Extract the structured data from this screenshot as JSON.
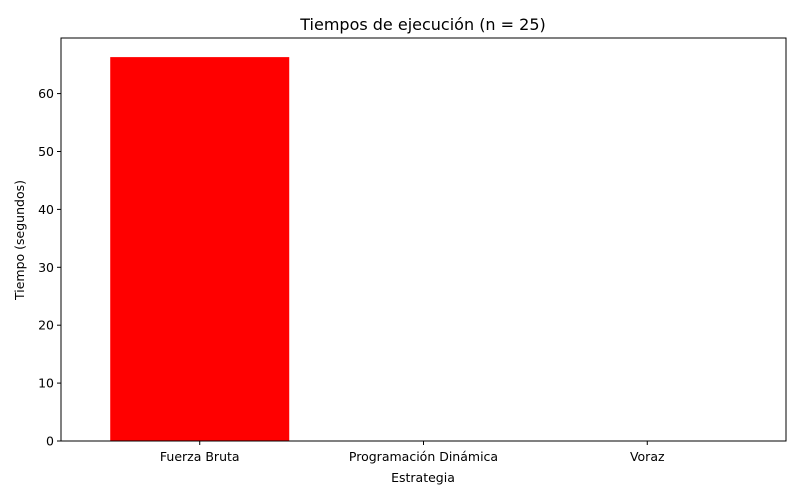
{
  "chart_data": {
    "type": "bar",
    "title": "Tiempos de ejecución (n = 25)",
    "xlabel": "Estrategia",
    "ylabel": "Tiempo (segundos)",
    "categories": [
      "Fuerza Bruta",
      "Programación Dinámica",
      "Voraz"
    ],
    "values": [
      66.3,
      0.0,
      0.0
    ],
    "colors": [
      "#ff0000",
      "#ff0000",
      "#ff0000"
    ],
    "ylim": [
      0,
      69.6
    ],
    "yticks": [
      0,
      10,
      20,
      30,
      40,
      50,
      60
    ],
    "grid": false,
    "legend": "none"
  }
}
